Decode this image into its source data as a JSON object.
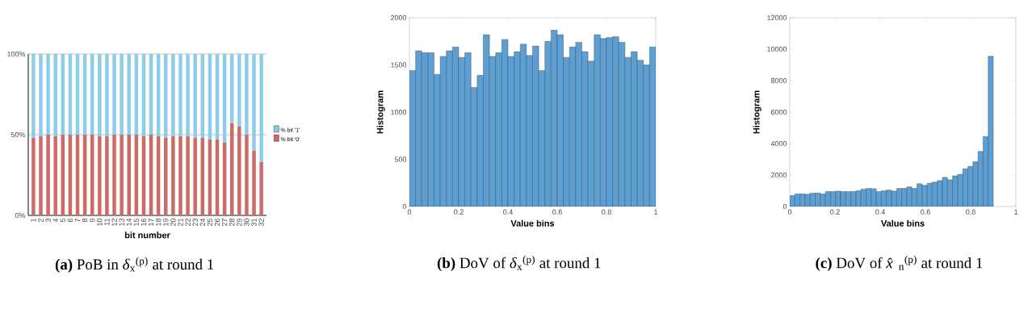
{
  "chart_data": [
    {
      "type": "bar",
      "title": "**(a)** PoB in *δ*$_{x}$$^{(p)}$ at round 1",
      "xlabel": "bit number",
      "categories": [
        "1",
        "2",
        "3",
        "4",
        "5",
        "6",
        "7",
        "8",
        "9",
        "10",
        "11",
        "12",
        "13",
        "14",
        "15",
        "16",
        "17",
        "18",
        "19",
        "20",
        "21",
        "22",
        "23",
        "24",
        "25",
        "26",
        "27",
        "28",
        "29",
        "30",
        "31",
        "32"
      ],
      "stacked": true,
      "series": [
        {
          "name": "% bit '0'",
          "color": "#cd6b68",
          "values": [
            48,
            49,
            50,
            49,
            50,
            50,
            50,
            50,
            50,
            49,
            49,
            50,
            50,
            50,
            50,
            49,
            50,
            49,
            48,
            49,
            49,
            49,
            48,
            48,
            47,
            47,
            45,
            57,
            55,
            50,
            40,
            33
          ]
        },
        {
          "name": "% bit '1'",
          "color": "#8ecdea",
          "values": [
            52,
            51,
            50,
            51,
            50,
            50,
            50,
            50,
            50,
            51,
            51,
            50,
            50,
            50,
            50,
            51,
            50,
            51,
            52,
            51,
            51,
            51,
            52,
            52,
            53,
            53,
            55,
            43,
            45,
            50,
            60,
            67
          ]
        }
      ],
      "ylim": [
        0,
        100
      ],
      "yticks": [
        {
          "value": 0,
          "label": "0%"
        },
        {
          "value": 50,
          "label": "50%"
        },
        {
          "value": 100,
          "label": "100%"
        }
      ],
      "grid": "y",
      "legend": "right"
    },
    {
      "type": "histogram",
      "title": "**(b)** DoV of *δ*$_{x}$$^{(p)}$ at round 1",
      "xlabel": "Value bins",
      "ylabel": "Histogram",
      "color": "#5b9fd4",
      "bins": [
        0,
        0.025,
        0.05,
        0.075,
        0.1,
        0.125,
        0.15,
        0.175,
        0.2,
        0.225,
        0.25,
        0.275,
        0.3,
        0.325,
        0.35,
        0.375,
        0.4,
        0.425,
        0.45,
        0.475,
        0.5,
        0.525,
        0.55,
        0.575,
        0.6,
        0.625,
        0.65,
        0.675,
        0.7,
        0.725,
        0.75,
        0.775,
        0.8,
        0.825,
        0.85,
        0.875,
        0.9,
        0.925,
        0.95,
        0.975,
        1
      ],
      "values": [
        1440,
        1650,
        1630,
        1630,
        1400,
        1590,
        1650,
        1690,
        1580,
        1630,
        1260,
        1390,
        1820,
        1590,
        1630,
        1770,
        1590,
        1640,
        1720,
        1600,
        1700,
        1440,
        1750,
        1870,
        1820,
        1580,
        1690,
        1740,
        1640,
        1540,
        1820,
        1780,
        1790,
        1800,
        1740,
        1580,
        1640,
        1550,
        1500,
        1690
      ],
      "xlim": [
        0,
        1
      ],
      "xticks": [
        0,
        0.2,
        0.4,
        0.6,
        0.8,
        1
      ],
      "ylim": [
        0,
        2000
      ],
      "yticks": [
        0,
        500,
        1000,
        1500,
        2000
      ]
    },
    {
      "type": "histogram",
      "title": "**(c)** DoV of *x̂*$_{n}$$^{(p)}$ at round 1",
      "xlabel": "Value bins",
      "ylabel": "Histogram",
      "color": "#5b9fd4",
      "bins": [
        0,
        0.0225,
        0.045,
        0.0675,
        0.09,
        0.1125,
        0.135,
        0.1575,
        0.18,
        0.2025,
        0.225,
        0.2475,
        0.27,
        0.2925,
        0.315,
        0.3375,
        0.36,
        0.3825,
        0.405,
        0.4275,
        0.45,
        0.4725,
        0.495,
        0.5175,
        0.54,
        0.5625,
        0.585,
        0.6075,
        0.63,
        0.6525,
        0.675,
        0.6975,
        0.72,
        0.7425,
        0.765,
        0.7875,
        0.81,
        0.8325,
        0.855,
        0.8775,
        0.9
      ],
      "values": [
        700,
        800,
        800,
        780,
        850,
        860,
        800,
        950,
        950,
        980,
        950,
        950,
        950,
        1000,
        1100,
        1150,
        1130,
        950,
        1000,
        1050,
        980,
        1150,
        1150,
        1250,
        1150,
        1450,
        1350,
        1480,
        1550,
        1650,
        1850,
        1700,
        1950,
        2050,
        2400,
        2550,
        2850,
        3500,
        4450,
        9550
      ],
      "xlim": [
        0,
        1
      ],
      "xticks": [
        0,
        0.2,
        0.4,
        0.6,
        0.8,
        1
      ],
      "ylim": [
        0,
        12000
      ],
      "yticks": [
        0,
        2000,
        4000,
        6000,
        8000,
        10000,
        12000
      ]
    }
  ]
}
